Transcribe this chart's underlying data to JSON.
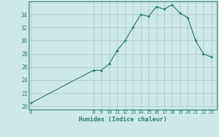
{
  "xlabel": "Humidex (Indice chaleur)",
  "x_values": [
    0,
    8,
    9,
    10,
    11,
    12,
    13,
    14,
    15,
    16,
    17,
    18,
    19,
    20,
    21,
    22,
    23
  ],
  "y_values": [
    20.5,
    25.5,
    25.5,
    26.5,
    28.5,
    30.0,
    32.0,
    34.0,
    33.7,
    35.2,
    34.8,
    35.5,
    34.2,
    33.5,
    30.0,
    28.0,
    27.5
  ],
  "line_color": "#2e7d6e",
  "bg_color": "#cde8e8",
  "grid_color": "#b0c8c8",
  "text_color": "#2e7d6e",
  "ylim": [
    19.5,
    36.0
  ],
  "yticks": [
    20,
    22,
    24,
    26,
    28,
    30,
    32,
    34
  ],
  "xticks": [
    0,
    8,
    9,
    10,
    11,
    12,
    13,
    14,
    15,
    16,
    17,
    18,
    19,
    20,
    21,
    22,
    23
  ],
  "xlim": [
    -0.3,
    23.7
  ]
}
